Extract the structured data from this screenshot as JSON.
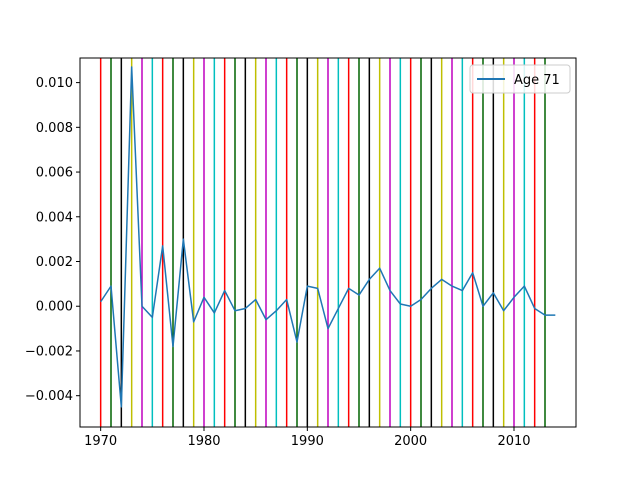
{
  "chart_data": {
    "type": "line",
    "title": "",
    "xlabel": "",
    "ylabel": "",
    "xlim": [
      1968,
      2016
    ],
    "ylim": [
      -0.0054,
      0.0111
    ],
    "x_ticks": [
      1970,
      1980,
      1990,
      2000,
      2010
    ],
    "y_ticks": [
      -0.004,
      -0.002,
      0.0,
      0.002,
      0.004,
      0.006,
      0.008,
      0.01
    ],
    "y_tick_labels": [
      "−0.004",
      "−0.002",
      "0.000",
      "0.002",
      "0.004",
      "0.006",
      "0.008",
      "0.010"
    ],
    "legend": {
      "placement": "top-right",
      "entries": [
        "Age 71"
      ]
    },
    "series": [
      {
        "name": "Age 71",
        "color": "#1f77b4",
        "x": [
          1970,
          1971,
          1972,
          1973,
          1974,
          1975,
          1976,
          1977,
          1978,
          1979,
          1980,
          1981,
          1982,
          1983,
          1984,
          1985,
          1986,
          1987,
          1988,
          1989,
          1990,
          1991,
          1992,
          1993,
          1994,
          1995,
          1996,
          1997,
          1998,
          1999,
          2000,
          2001,
          2002,
          2003,
          2004,
          2005,
          2006,
          2007,
          2008,
          2009,
          2010,
          2011,
          2012,
          2013,
          2014
        ],
        "y": [
          0.0002,
          0.0009,
          -0.0045,
          0.0107,
          0.0,
          -0.0005,
          0.0027,
          -0.0018,
          0.003,
          -0.0007,
          0.0004,
          -0.0003,
          0.0007,
          -0.0002,
          -0.0001,
          0.0003,
          -0.0006,
          -0.0002,
          0.0003,
          -0.0016,
          0.0009,
          0.0008,
          -0.001,
          -0.0001,
          0.0008,
          0.0005,
          0.0012,
          0.0017,
          0.0007,
          0.0001,
          0.0,
          0.0003,
          0.0008,
          0.0012,
          0.0009,
          0.0007,
          0.0015,
          0.0,
          0.0006,
          -0.0002,
          0.0004,
          0.0009,
          -0.0001,
          -0.0004,
          -0.0004
        ]
      }
    ],
    "vlines": {
      "years": [
        1970,
        1971,
        1972,
        1973,
        1974,
        1975,
        1976,
        1977,
        1978,
        1979,
        1980,
        1981,
        1982,
        1983,
        1984,
        1985,
        1986,
        1987,
        1988,
        1989,
        1990,
        1991,
        1992,
        1993,
        1994,
        1995,
        1996,
        1997,
        1998,
        1999,
        2000,
        2001,
        2002,
        2003,
        2004,
        2005,
        2006,
        2007,
        2008,
        2009,
        2010,
        2011,
        2012,
        2013
      ],
      "color_cycle": [
        "#ff0000",
        "#008000",
        "#000000",
        "#bfbf00",
        "#bf00bf",
        "#00bfbf",
        "#bf0000"
      ],
      "colors": [
        "#ff0000",
        "#006400",
        "#000000",
        "#bfbf00",
        "#bf00bf",
        "#00bfbf",
        "#ff0000",
        "#006400",
        "#000000",
        "#bfbf00",
        "#bf00bf",
        "#00bfbf",
        "#ff0000",
        "#006400",
        "#000000",
        "#bfbf00",
        "#bf00bf",
        "#00bfbf",
        "#ff0000",
        "#006400",
        "#000000",
        "#bfbf00",
        "#bf00bf",
        "#00bfbf",
        "#ff0000",
        "#006400",
        "#000000",
        "#bfbf00",
        "#bf00bf",
        "#00bfbf",
        "#ff0000",
        "#006400",
        "#000000",
        "#bfbf00",
        "#bf00bf",
        "#00bfbf",
        "#ff0000",
        "#006400",
        "#000000",
        "#bfbf00",
        "#bf00bf",
        "#00bfbf",
        "#ff0000",
        "#006400"
      ]
    }
  }
}
